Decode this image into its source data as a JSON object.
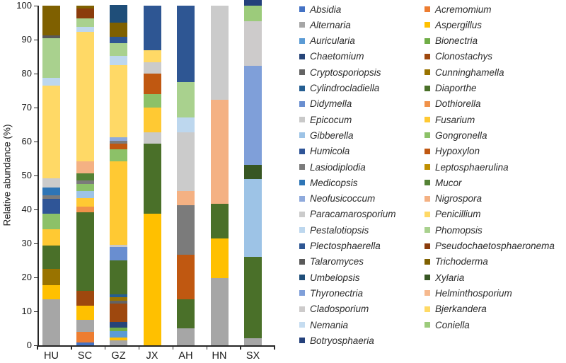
{
  "y_axis": {
    "label": "Relative abundance (%)",
    "ticks": [
      0,
      10,
      20,
      30,
      40,
      50,
      60,
      70,
      80,
      90,
      100
    ]
  },
  "x_axis": {
    "categories": [
      "HU",
      "SC",
      "GZ",
      "JX",
      "AH",
      "HN",
      "SX"
    ]
  },
  "legend": {
    "column1": [
      "Absidia",
      "Alternaria",
      "Auricularia",
      "Chaetomium",
      "Cryptosporiopsis",
      "Cylindrocladiella",
      "Didymella",
      "Epicocum",
      "Gibberella",
      "Humicola",
      "Lasiodiplodia",
      "Medicopsis",
      "Neofusicoccum",
      "Paracamarosporium",
      "Pestalotiopsis",
      "Plectosphaerella",
      "Talaromyces",
      "Umbelopsis",
      "Thyronectria",
      "Cladosporium",
      "Nemania",
      "Botryosphaeria"
    ],
    "column2": [
      "Acremomium",
      "Aspergillus",
      "Bionectria",
      "Clonostachys",
      "Cunninghamella",
      "Diaporthe",
      "Dothiorella",
      "Fusarium",
      "Gongronella",
      "Hypoxylon",
      "Leptosphaerulina",
      "Mucor",
      "Nigrospora",
      "Penicillium",
      "Phomopsis",
      "Pseudochaetosphaeronema",
      "Trichoderma",
      "Xylaria",
      "Helminthosporium",
      "Bjerkandera",
      "Coniella"
    ]
  },
  "chart_data": {
    "type": "bar",
    "stacked": true,
    "title": "",
    "xlabel": "",
    "ylabel": "Relative abundance (%)",
    "ylim": [
      0,
      100
    ],
    "grid": false,
    "legend_position": "right, two columns, italic genus names",
    "categories": [
      "HU",
      "SC",
      "GZ",
      "JX",
      "AH",
      "HN",
      "SX"
    ],
    "series": [
      {
        "name": "Absidia",
        "color": "#4472C4",
        "values": [
          0,
          0.8,
          0,
          0,
          0,
          0,
          0
        ]
      },
      {
        "name": "Acremomium",
        "color": "#ED7D31",
        "values": [
          0,
          3.1,
          0,
          0,
          0,
          0,
          0
        ]
      },
      {
        "name": "Alternaria",
        "color": "#A6A6A6",
        "values": [
          13.5,
          3.5,
          1.5,
          0,
          5.1,
          19.7,
          2.0
        ]
      },
      {
        "name": "Aspergillus",
        "color": "#FFC000",
        "values": [
          4.3,
          4.3,
          0.8,
          38.8,
          0,
          11.8,
          0
        ]
      },
      {
        "name": "Auricularia",
        "color": "#5B9BD5",
        "values": [
          0,
          0,
          1.9,
          0,
          0,
          0,
          0
        ]
      },
      {
        "name": "Bionectria",
        "color": "#70AD47",
        "values": [
          0,
          0,
          1.0,
          0,
          0,
          0,
          0
        ]
      },
      {
        "name": "Chaetomium",
        "color": "#264478",
        "values": [
          0,
          0,
          1.7,
          0,
          0,
          0,
          0
        ]
      },
      {
        "name": "Clonostachys",
        "color": "#9E480E",
        "values": [
          0,
          4.4,
          5.4,
          0,
          0,
          0,
          0
        ]
      },
      {
        "name": "Cryptosporiopsis",
        "color": "#636363",
        "values": [
          0,
          0,
          0.8,
          0,
          0,
          0,
          0
        ]
      },
      {
        "name": "Cunninghamella",
        "color": "#997300",
        "values": [
          4.7,
          0,
          1.0,
          0,
          0,
          0,
          0
        ]
      },
      {
        "name": "Cylindrocladiella",
        "color": "#255E91",
        "values": [
          0,
          0,
          1.0,
          0,
          0,
          0,
          0
        ]
      },
      {
        "name": "Diaporthe",
        "color": "#4A7029",
        "values": [
          6.9,
          23.1,
          10.0,
          20.6,
          8.4,
          10.1,
          24.0
        ]
      },
      {
        "name": "Didymella",
        "color": "#698ED0",
        "values": [
          0,
          0,
          3.8,
          0,
          0,
          0,
          0
        ]
      },
      {
        "name": "Dothiorella",
        "color": "#F0924A",
        "values": [
          0,
          1.7,
          0,
          0,
          0,
          0,
          0
        ]
      },
      {
        "name": "Epicocum",
        "color": "#C9C9C9",
        "values": [
          0,
          0,
          0.7,
          3.4,
          0,
          0,
          0
        ]
      },
      {
        "name": "Fusarium",
        "color": "#FFC933",
        "values": [
          4.7,
          2.4,
          24.5,
          7.3,
          0,
          0,
          0
        ]
      },
      {
        "name": "Gibberella",
        "color": "#9DC3E6",
        "values": [
          0,
          2.1,
          0,
          0,
          0,
          0,
          22.9
        ]
      },
      {
        "name": "Gongronella",
        "color": "#8CC168",
        "values": [
          4.6,
          2.1,
          3.6,
          3.8,
          0,
          0,
          0
        ]
      },
      {
        "name": "Humicola",
        "color": "#2F5597",
        "values": [
          4.4,
          0,
          0,
          0,
          0,
          0,
          0
        ]
      },
      {
        "name": "Hypoxylon",
        "color": "#C05811",
        "values": [
          0,
          0,
          1.6,
          6.2,
          13.2,
          0,
          0
        ]
      },
      {
        "name": "Lasiodiplodia",
        "color": "#7B7B7B",
        "values": [
          1.1,
          1.0,
          1.0,
          0,
          14.6,
          0,
          0
        ]
      },
      {
        "name": "Leptosphaerulina",
        "color": "#BF8F00",
        "values": [
          0,
          0,
          0,
          0,
          0,
          0,
          0
        ]
      },
      {
        "name": "Medicopsis",
        "color": "#2E75B6",
        "values": [
          2.3,
          0,
          0,
          0,
          0,
          0,
          0
        ]
      },
      {
        "name": "Mucor",
        "color": "#548235",
        "values": [
          0,
          2.1,
          0,
          0,
          0,
          0,
          0
        ]
      },
      {
        "name": "Neofusicoccum",
        "color": "#8FAADC",
        "values": [
          0,
          0,
          1.0,
          0,
          0,
          0,
          0
        ]
      },
      {
        "name": "Nigrospora",
        "color": "#F4B183",
        "values": [
          0,
          3.5,
          0,
          0,
          4.1,
          30.6,
          0
        ]
      },
      {
        "name": "Paracamarosporium",
        "color": "#CBCBCB",
        "values": [
          2.6,
          0,
          0,
          3.2,
          17.4,
          27.8,
          0
        ]
      },
      {
        "name": "Penicillium",
        "color": "#FFD966",
        "values": [
          27.4,
          38.2,
          21.2,
          3.6,
          0,
          0,
          0
        ]
      },
      {
        "name": "Pestalotiopsis",
        "color": "#BDD7EE",
        "values": [
          2.2,
          1.5,
          2.7,
          0,
          4.2,
          0,
          0
        ]
      },
      {
        "name": "Phomopsis",
        "color": "#A9D18E",
        "values": [
          11.7,
          2.5,
          3.7,
          0,
          10.4,
          0,
          0
        ]
      },
      {
        "name": "Plectosphaerella",
        "color": "#2E5693",
        "values": [
          0,
          0,
          1.9,
          13.1,
          22.6,
          0,
          0
        ]
      },
      {
        "name": "Pseudochaetosphaeronema",
        "color": "#8B3C0C",
        "values": [
          0,
          2.9,
          0,
          0,
          0,
          0,
          0
        ]
      },
      {
        "name": "Talaromyces",
        "color": "#595959",
        "values": [
          0.8,
          0,
          0,
          0,
          0,
          0,
          0
        ]
      },
      {
        "name": "Trichoderma",
        "color": "#7F6000",
        "values": [
          8.8,
          0.8,
          4.1,
          0,
          0,
          0,
          0
        ]
      },
      {
        "name": "Umbelopsis",
        "color": "#1F4E79",
        "values": [
          0,
          0,
          5.3,
          0,
          0,
          0,
          0
        ]
      },
      {
        "name": "Xylaria",
        "color": "#375623",
        "values": [
          0,
          0,
          0,
          0,
          0,
          0,
          4.2
        ]
      },
      {
        "name": "Thyronectria",
        "color": "#7F9FD9",
        "values": [
          0,
          0,
          0,
          0,
          0,
          0,
          29.1
        ]
      },
      {
        "name": "Helminthosporium",
        "color": "#F6B98E",
        "values": [
          0,
          0,
          0,
          0,
          0,
          0,
          0
        ]
      },
      {
        "name": "Cladosporium",
        "color": "#CDCBCB",
        "values": [
          0,
          0,
          0,
          0,
          0,
          0,
          13.3
        ]
      },
      {
        "name": "Bjerkandera",
        "color": "#FFDA66",
        "values": [
          0,
          0,
          0,
          0,
          0,
          0,
          0
        ]
      },
      {
        "name": "Nemania",
        "color": "#C5DCF0",
        "values": [
          0,
          0,
          0,
          0,
          0,
          0,
          0
        ]
      },
      {
        "name": "Coniella",
        "color": "#9CCB7B",
        "values": [
          0,
          0,
          0,
          0,
          0,
          0,
          4.5
        ]
      },
      {
        "name": "Botryosphaeria",
        "color": "#24417B",
        "values": [
          0,
          0,
          0,
          0,
          0,
          0,
          4.5
        ]
      }
    ]
  }
}
